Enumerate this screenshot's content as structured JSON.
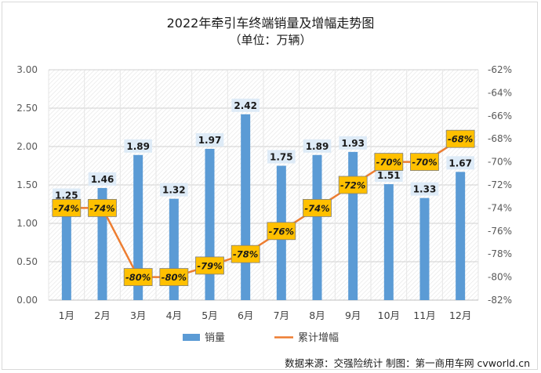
{
  "title": "2022年牵引车终端销量及增幅走势图",
  "subtitle": "（单位：万辆）",
  "source": "数据来源：交强险统计  制图：第一商用车网 cvworld.cn",
  "colors": {
    "bar": "#5b9bd5",
    "line": "#ed7d31",
    "label_bg": "#ffc000",
    "bar_label_bg": "#deebf7"
  },
  "chart_data": {
    "type": "bar+line",
    "categories": [
      "1月",
      "2月",
      "3月",
      "4月",
      "5月",
      "6月",
      "7月",
      "8月",
      "9月",
      "10月",
      "11月",
      "12月"
    ],
    "series": [
      {
        "name": "销量",
        "type": "bar",
        "axis": "left",
        "values": [
          1.25,
          1.46,
          1.89,
          1.32,
          1.97,
          2.42,
          1.75,
          1.89,
          1.93,
          1.51,
          1.33,
          1.67
        ]
      },
      {
        "name": "累计增幅",
        "type": "line",
        "axis": "right",
        "values": [
          -74,
          -74,
          -80,
          -80,
          -79,
          -78,
          -76,
          -74,
          -72,
          -70,
          -70,
          -68
        ]
      }
    ],
    "left_axis": {
      "ylim": [
        0,
        3
      ],
      "ticks": [
        "0.00",
        "0.50",
        "1.00",
        "1.50",
        "2.00",
        "2.50",
        "3.00"
      ]
    },
    "right_axis": {
      "ylim": [
        -82,
        -62
      ],
      "ticks": [
        "-82%",
        "-80%",
        "-78%",
        "-76%",
        "-74%",
        "-72%",
        "-70%",
        "-68%",
        "-66%",
        "-64%",
        "-62%"
      ]
    },
    "bar_labels": [
      "1.25",
      "1.46",
      "1.89",
      "1.32",
      "1.97",
      "2.42",
      "1.75",
      "1.89",
      "1.93",
      "1.51",
      "1.33",
      "1.67"
    ],
    "line_labels": [
      "-74%",
      "-74%",
      "-80%",
      "-80%",
      "-79%",
      "-78%",
      "-76%",
      "-74%",
      "-72%",
      "-70%",
      "-70%",
      "-68%"
    ],
    "legend_position": "bottom"
  }
}
